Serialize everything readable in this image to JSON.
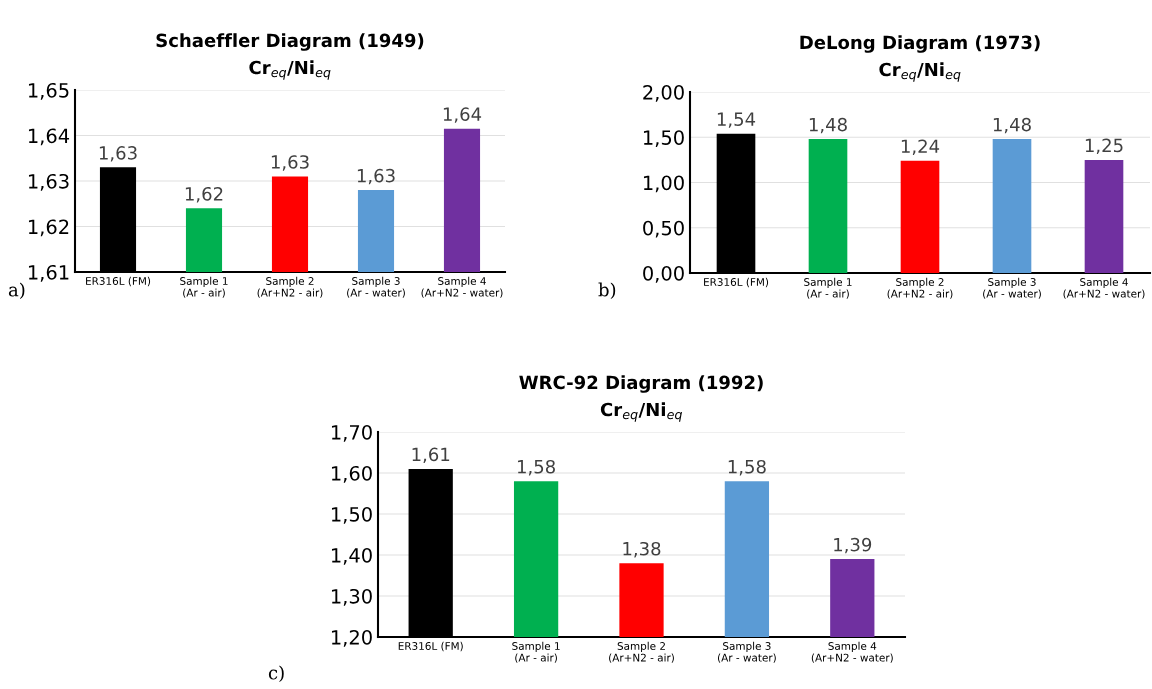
{
  "chart_data": [
    {
      "type": "bar",
      "title": "Schaeffler Diagram (1949)",
      "subtitle": "Cr$_{eq}$/Ni$_{eq}$",
      "categories": [
        "ER316L (FM)",
        "Sample 1\n(Ar - air)",
        "Sample 2\n(Ar+N2 - air)",
        "Sample 3\n(Ar - water)",
        "Sample 4\n(Ar+N2 - water)"
      ],
      "values": [
        1.633,
        1.624,
        1.631,
        1.628,
        1.6415
      ],
      "value_labels": [
        "1,63",
        "1,62",
        "1,63",
        "1,63",
        "1,64"
      ],
      "colors": [
        "#000000",
        "#00b050",
        "#ff0000",
        "#5b9bd5",
        "#7030a0"
      ],
      "ylim": [
        1.61,
        1.65
      ],
      "yticks": [
        {
          "value": 1.61,
          "label": "1,61"
        },
        {
          "value": 1.62,
          "label": "1,62"
        },
        {
          "value": 1.63,
          "label": "1,63"
        },
        {
          "value": 1.64,
          "label": "1,64"
        },
        {
          "value": 1.65,
          "label": "1,65"
        }
      ],
      "grid": "y",
      "annotations": [
        "a)"
      ]
    },
    {
      "type": "bar",
      "title": "DeLong Diagram (1973)",
      "subtitle": "Cr$_{eq}$/Ni$_{eq}$",
      "categories": [
        "ER316L (FM)",
        "Sample 1\n(Ar - air)",
        "Sample 2\n(Ar+N2 - air)",
        "Sample 3\n(Ar - water)",
        "Sample 4\n(Ar+N2 - water)"
      ],
      "values": [
        1.54,
        1.48,
        1.24,
        1.48,
        1.25
      ],
      "value_labels": [
        "1,54",
        "1,48",
        "1,24",
        "1,48",
        "1,25"
      ],
      "colors": [
        "#000000",
        "#00b050",
        "#ff0000",
        "#5b9bd5",
        "#7030a0"
      ],
      "ylim": [
        0,
        2
      ],
      "yticks": [
        {
          "value": 0,
          "label": "0,00"
        },
        {
          "value": 0.5,
          "label": "0,50"
        },
        {
          "value": 1,
          "label": "1,00"
        },
        {
          "value": 1.5,
          "label": "1,50"
        },
        {
          "value": 2,
          "label": "2,00"
        }
      ],
      "grid": "y",
      "annotations": [
        "b)"
      ]
    },
    {
      "type": "bar",
      "title": "WRC-92 Diagram (1992)",
      "subtitle": "Cr$_{eq}$/Ni$_{eq}$",
      "categories": [
        "ER316L (FM)",
        "Sample 1\n(Ar - air)",
        "Sample 2\n(Ar+N2 - air)",
        "Sample 3\n(Ar - water)",
        "Sample 4\n(Ar+N2 - water)"
      ],
      "values": [
        1.61,
        1.58,
        1.38,
        1.58,
        1.39
      ],
      "value_labels": [
        "1,61",
        "1,58",
        "1,38",
        "1,58",
        "1,39"
      ],
      "colors": [
        "#000000",
        "#00b050",
        "#ff0000",
        "#5b9bd5",
        "#7030a0"
      ],
      "ylim": [
        1.2,
        1.7
      ],
      "yticks": [
        {
          "value": 1.2,
          "label": "1,20"
        },
        {
          "value": 1.3,
          "label": "1,30"
        },
        {
          "value": 1.4,
          "label": "1,40"
        },
        {
          "value": 1.5,
          "label": "1,50"
        },
        {
          "value": 1.6,
          "label": "1,60"
        },
        {
          "value": 1.7,
          "label": "1,70"
        }
      ],
      "grid": "y",
      "annotations": [
        "c)"
      ]
    }
  ]
}
